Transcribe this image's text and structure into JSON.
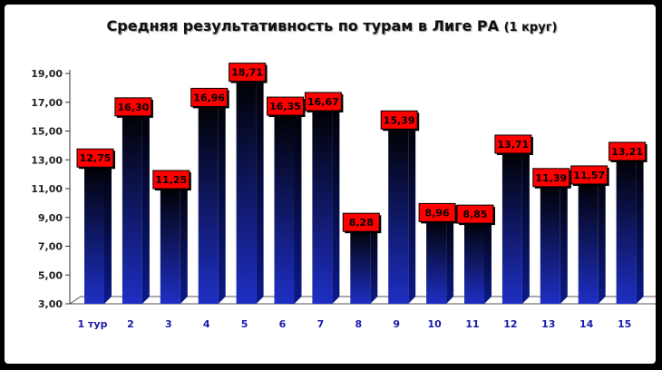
{
  "chart_data": {
    "type": "bar",
    "title": "Средняя результативность по турам в Лиге РА",
    "subtitle": "(1 круг)",
    "categories": [
      "1 тур",
      "2",
      "3",
      "4",
      "5",
      "6",
      "7",
      "8",
      "9",
      "10",
      "11",
      "12",
      "13",
      "14",
      "15"
    ],
    "values": [
      12.75,
      16.3,
      11.25,
      16.96,
      18.71,
      16.35,
      16.67,
      8.28,
      15.39,
      8.96,
      8.85,
      13.71,
      11.39,
      11.57,
      13.21
    ],
    "data_labels": [
      "12,75",
      "16,30",
      "11,25",
      "16,96",
      "18,71",
      "16,35",
      "16,67",
      "8,28",
      "15,39",
      "8,96",
      "8,85",
      "13,71",
      "11,39",
      "11,57",
      "13,21"
    ],
    "yticks": [
      "3,00",
      "5,00",
      "7,00",
      "9,00",
      "11,00",
      "13,00",
      "15,00",
      "17,00",
      "19,00"
    ],
    "ylim": [
      3,
      19
    ],
    "ytick_values": [
      3,
      5,
      7,
      9,
      11,
      13,
      15,
      17,
      19
    ],
    "grid": false,
    "legend": "none",
    "colors": {
      "bar_top": "#000000",
      "bar_bottom": "#1e2fc4",
      "label_bg": "#ff0000",
      "xtick": "#1a1aa8"
    }
  }
}
